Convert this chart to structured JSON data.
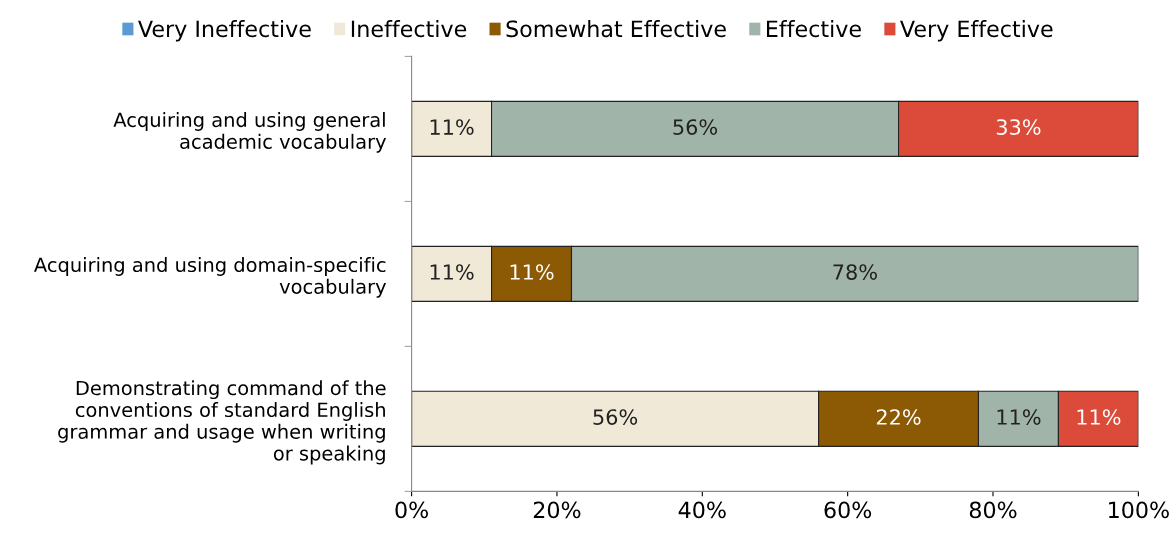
{
  "chart_data": {
    "type": "bar",
    "orientation": "horizontal",
    "stacked": true,
    "categories": [
      "Acquiring and using general\nacademic vocabulary",
      "Acquiring and using domain-specific\nvocabulary",
      "Demonstrating command of the\nconventions of standard English\ngrammar and usage when writing\nor speaking"
    ],
    "series": [
      {
        "name": "Very Ineffective",
        "color": "#5b9bd5",
        "values": [
          0,
          0,
          0
        ],
        "value_labels": [
          null,
          null,
          null
        ]
      },
      {
        "name": "Ineffective",
        "color": "#f1e9d7",
        "values": [
          11,
          11,
          56
        ],
        "value_labels": [
          "11%",
          "11%",
          "56%"
        ]
      },
      {
        "name": "Somewhat Effective",
        "color": "#8c5a04",
        "values": [
          0,
          11,
          22
        ],
        "value_labels": [
          null,
          "11%",
          "22%"
        ]
      },
      {
        "name": "Effective",
        "color": "#a1b4aa",
        "values": [
          56,
          78,
          11
        ],
        "value_labels": [
          "56%",
          "78%",
          "11%"
        ]
      },
      {
        "name": "Very Effective",
        "color": "#dc4b3a",
        "values": [
          33,
          0,
          11
        ],
        "value_labels": [
          "33%",
          null,
          "11%"
        ]
      }
    ],
    "xlim": [
      0,
      100
    ],
    "xticks": [
      {
        "value": 0,
        "label": "0%"
      },
      {
        "value": 20,
        "label": "20%"
      },
      {
        "value": 40,
        "label": "40%"
      },
      {
        "value": 60,
        "label": "60%"
      },
      {
        "value": 80,
        "label": "80%"
      },
      {
        "value": 100,
        "label": "100%"
      }
    ],
    "legend": "top",
    "grid": false
  }
}
